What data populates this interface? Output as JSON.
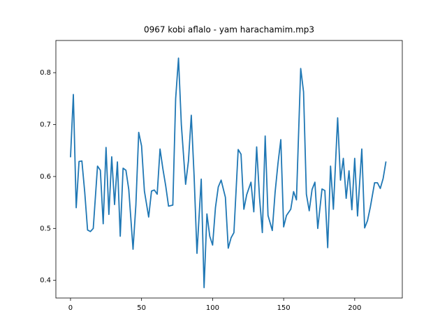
{
  "chart_data": {
    "type": "line",
    "title": "0967 kobi aflalo - yam harachamim.mp3",
    "color": "#1f77b4",
    "x": [
      0,
      2,
      4,
      6,
      8,
      10,
      12,
      14,
      16,
      19,
      21,
      23,
      25,
      27,
      29,
      31,
      33,
      35,
      37,
      39,
      41,
      44,
      46,
      48,
      50,
      52,
      55,
      57,
      59,
      61,
      63,
      65,
      67,
      69,
      72,
      74,
      76,
      78,
      81,
      83,
      85,
      87,
      89,
      92,
      94,
      96,
      98,
      100,
      102,
      104,
      106,
      109,
      111,
      113,
      115,
      118,
      120,
      122,
      124,
      127,
      129,
      131,
      133,
      135,
      137,
      139,
      142,
      144,
      146,
      148,
      150,
      152,
      155,
      157,
      159,
      162,
      164,
      166,
      168,
      170,
      172,
      174,
      177,
      179,
      181,
      183,
      185,
      188,
      190,
      192,
      194,
      196,
      198,
      200,
      202,
      205,
      207,
      209,
      211,
      214,
      216,
      218,
      220,
      222
    ],
    "values": [
      0.637,
      0.758,
      0.54,
      0.629,
      0.63,
      0.57,
      0.497,
      0.494,
      0.5,
      0.62,
      0.612,
      0.509,
      0.656,
      0.527,
      0.638,
      0.546,
      0.628,
      0.485,
      0.616,
      0.612,
      0.575,
      0.46,
      0.545,
      0.685,
      0.659,
      0.572,
      0.522,
      0.572,
      0.574,
      0.566,
      0.653,
      0.615,
      0.582,
      0.543,
      0.545,
      0.75,
      0.828,
      0.7,
      0.585,
      0.63,
      0.718,
      0.6,
      0.452,
      0.595,
      0.386,
      0.528,
      0.485,
      0.468,
      0.54,
      0.58,
      0.593,
      0.56,
      0.462,
      0.482,
      0.492,
      0.652,
      0.643,
      0.537,
      0.565,
      0.589,
      0.532,
      0.657,
      0.56,
      0.492,
      0.678,
      0.525,
      0.496,
      0.57,
      0.625,
      0.671,
      0.503,
      0.525,
      0.537,
      0.571,
      0.555,
      0.808,
      0.763,
      0.566,
      0.534,
      0.575,
      0.589,
      0.5,
      0.576,
      0.573,
      0.463,
      0.62,
      0.537,
      0.713,
      0.593,
      0.635,
      0.558,
      0.611,
      0.536,
      0.635,
      0.524,
      0.653,
      0.501,
      0.515,
      0.541,
      0.588,
      0.588,
      0.577,
      0.596,
      0.629
    ],
    "xlim": [
      -10.3,
      233.5
    ],
    "ylim": [
      0.366,
      0.862
    ],
    "xticks": [
      0,
      50,
      100,
      150,
      200
    ],
    "yticks": [
      0.4,
      0.5,
      0.6,
      0.7,
      0.8
    ]
  }
}
